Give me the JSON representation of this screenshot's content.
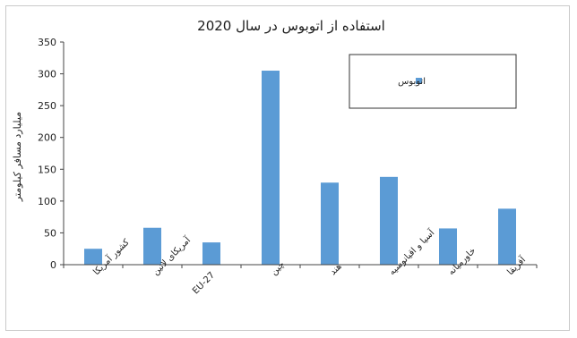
{
  "chart_data": {
    "type": "bar",
    "title": "استفاده از اتوبوس در سال 2020",
    "ylabel": "میلیارد مسافر کیلومتر",
    "xlabel": "",
    "ylim": [
      0,
      350
    ],
    "yticks": [
      0,
      50,
      100,
      150,
      200,
      250,
      300,
      350
    ],
    "categories": [
      "کشور آمریکا",
      "آمریکای لاتین",
      "EU-27",
      "چین",
      "هند",
      "آسیا و اقیانوسیه",
      "خاورمیانه",
      "آفریقا"
    ],
    "series": [
      {
        "name": "اتوبوس",
        "values": [
          25,
          58,
          35,
          305,
          129,
          138,
          57,
          88
        ]
      }
    ],
    "bar_color": "#5b9bd5",
    "grid": false,
    "legend": "top-right"
  }
}
